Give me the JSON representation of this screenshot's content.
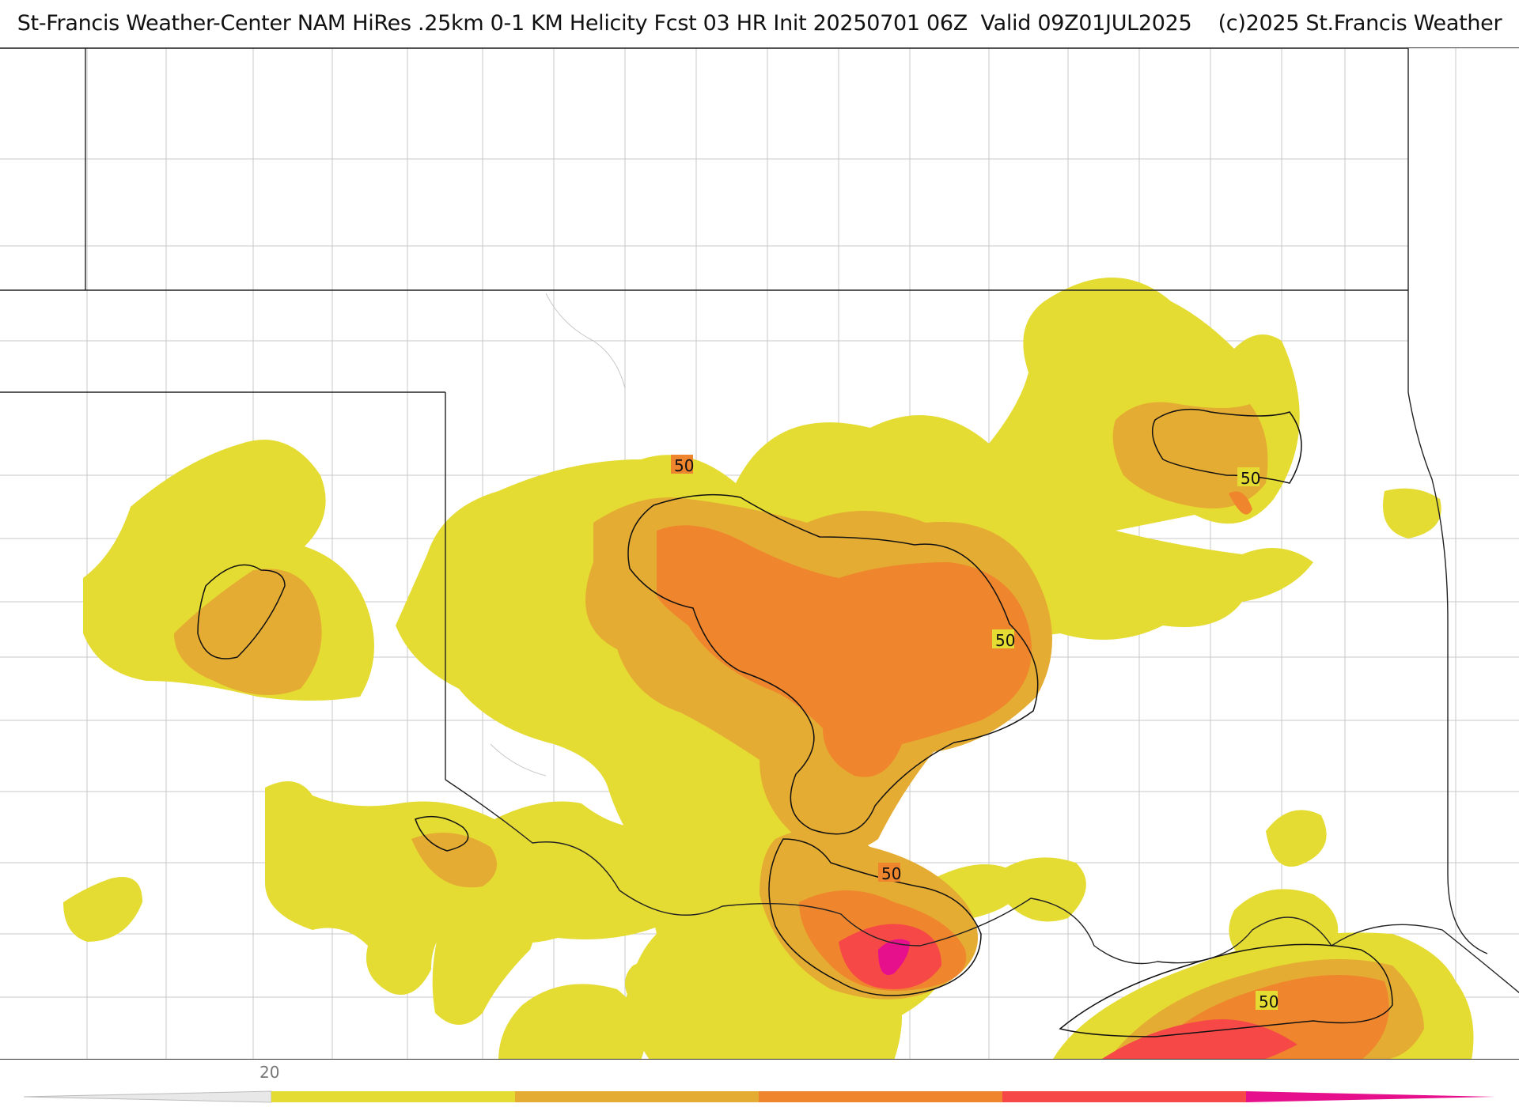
{
  "header": {
    "title": "St-Francis Weather-Center NAM HiRes .25km 0-1 KM Helicity Fcst 03 HR Init 20250701 06Z  Valid 09Z01JUL2025    (c)2025 St.Francis Weather"
  },
  "map": {
    "field": "0-1 KM Helicity",
    "contour_labels": [
      {
        "id": "label-50-north-central",
        "text": "50"
      },
      {
        "id": "label-50-central-east",
        "text": "50"
      },
      {
        "id": "label-50-northeast",
        "text": "50"
      },
      {
        "id": "label-50-south-central",
        "text": "50"
      },
      {
        "id": "label-50-southeast",
        "text": "50"
      }
    ]
  },
  "legend": {
    "tick_label": "20",
    "colors": {
      "low_gray": "#d9d9d9",
      "band_20": "#e5dc33",
      "band_2": "#e5ac33",
      "band_3": "#ef852c",
      "band_4": "#f74848",
      "band_5": "#e6108c"
    }
  }
}
